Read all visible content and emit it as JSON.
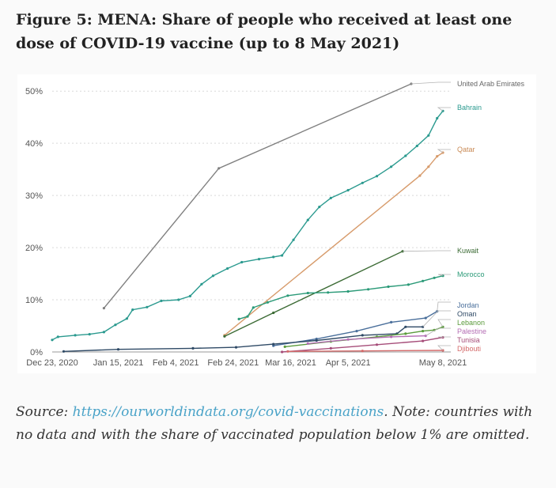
{
  "header": {
    "title": "Figure 5: MENA: Share of people who received at least one dose of COVID-19 vaccine (up to 8 May 2021)"
  },
  "footer": {
    "source_prefix": "Source: ",
    "source_link": "https://ourworldindata.org/covid-vaccinations",
    "source_note": ". Note: countries with no data and with the share of vaccinated population below 1% are omitted."
  },
  "chart_data": {
    "type": "line",
    "title": "",
    "xlabel": "",
    "ylabel": "",
    "x_ticks": [
      "Dec 23, 2020",
      "Jan 15, 2021",
      "Feb 4, 2021",
      "Feb 24, 2021",
      "Mar 16, 2021",
      "Apr 5, 2021",
      "May 8, 2021"
    ],
    "x_domain": [
      "2020-12-23",
      "2021-05-08"
    ],
    "y_ticks": [
      "0%",
      "10%",
      "20%",
      "30%",
      "40%",
      "50%"
    ],
    "ylim": [
      0,
      52
    ],
    "grid": "horizontal dotted",
    "legend": "right, labels at line ends",
    "series": [
      {
        "name": "United Arab Emirates",
        "color": "#808080",
        "points": [
          [
            "2021-01-10",
            8.4
          ],
          [
            "2021-02-19",
            35.2
          ],
          [
            "2021-04-27",
            51.4
          ]
        ]
      },
      {
        "name": "Bahrain",
        "color": "#2b9a8f",
        "points": [
          [
            "2020-12-23",
            2.3
          ],
          [
            "2020-12-25",
            2.9
          ],
          [
            "2020-12-31",
            3.2
          ],
          [
            "2021-01-05",
            3.4
          ],
          [
            "2021-01-10",
            3.8
          ],
          [
            "2021-01-14",
            5.2
          ],
          [
            "2021-01-18",
            6.4
          ],
          [
            "2021-01-20",
            8.1
          ],
          [
            "2021-01-25",
            8.6
          ],
          [
            "2021-01-30",
            9.8
          ],
          [
            "2021-02-05",
            10.0
          ],
          [
            "2021-02-09",
            10.7
          ],
          [
            "2021-02-13",
            13.0
          ],
          [
            "2021-02-17",
            14.6
          ],
          [
            "2021-02-22",
            16.0
          ],
          [
            "2021-02-27",
            17.2
          ],
          [
            "2021-03-05",
            17.8
          ],
          [
            "2021-03-10",
            18.2
          ],
          [
            "2021-03-13",
            18.5
          ],
          [
            "2021-03-17",
            21.5
          ],
          [
            "2021-03-22",
            25.3
          ],
          [
            "2021-03-26",
            27.8
          ],
          [
            "2021-03-30",
            29.5
          ],
          [
            "2021-04-05",
            31.0
          ],
          [
            "2021-04-10",
            32.4
          ],
          [
            "2021-04-15",
            33.7
          ],
          [
            "2021-04-20",
            35.5
          ],
          [
            "2021-04-25",
            37.6
          ],
          [
            "2021-04-29",
            39.5
          ],
          [
            "2021-05-03",
            41.5
          ],
          [
            "2021-05-06",
            44.8
          ],
          [
            "2021-05-08",
            46.2
          ]
        ]
      },
      {
        "name": "Qatar",
        "color": "#d79b6b",
        "points": [
          [
            "2021-02-21",
            3.2
          ],
          [
            "2021-04-30",
            33.8
          ],
          [
            "2021-05-03",
            35.5
          ],
          [
            "2021-05-06",
            37.5
          ],
          [
            "2021-05-08",
            38.2
          ]
        ]
      },
      {
        "name": "Kuwait",
        "color": "#3c6b35",
        "points": [
          [
            "2021-02-21",
            3.0
          ],
          [
            "2021-03-10",
            7.5
          ],
          [
            "2021-04-24",
            19.3
          ]
        ]
      },
      {
        "name": "Morocco",
        "color": "#2b9a78",
        "points": [
          [
            "2021-02-26",
            6.3
          ],
          [
            "2021-03-01",
            6.8
          ],
          [
            "2021-03-03",
            8.5
          ],
          [
            "2021-03-08",
            9.5
          ],
          [
            "2021-03-15",
            10.8
          ],
          [
            "2021-03-22",
            11.3
          ],
          [
            "2021-03-29",
            11.4
          ],
          [
            "2021-04-05",
            11.6
          ],
          [
            "2021-04-12",
            12.0
          ],
          [
            "2021-04-19",
            12.5
          ],
          [
            "2021-04-26",
            12.9
          ],
          [
            "2021-05-01",
            13.6
          ],
          [
            "2021-05-05",
            14.2
          ],
          [
            "2021-05-08",
            14.6
          ]
        ]
      },
      {
        "name": "Jordan",
        "color": "#4a6f9b",
        "points": [
          [
            "2021-03-10",
            1.2
          ],
          [
            "2021-03-25",
            2.5
          ],
          [
            "2021-04-08",
            4.0
          ],
          [
            "2021-04-20",
            5.7
          ],
          [
            "2021-05-02",
            6.5
          ],
          [
            "2021-05-06",
            7.8
          ]
        ]
      },
      {
        "name": "Oman",
        "color": "#2f4a66",
        "points": [
          [
            "2020-12-27",
            0.1
          ],
          [
            "2021-01-15",
            0.5
          ],
          [
            "2021-02-10",
            0.7
          ],
          [
            "2021-02-25",
            0.9
          ],
          [
            "2021-03-10",
            1.5
          ],
          [
            "2021-03-25",
            2.2
          ],
          [
            "2021-04-10",
            3.2
          ],
          [
            "2021-04-22",
            3.5
          ],
          [
            "2021-04-25",
            4.8
          ],
          [
            "2021-05-01",
            4.8
          ]
        ]
      },
      {
        "name": "Lebanon",
        "color": "#5b9b3c",
        "points": [
          [
            "2021-03-14",
            1.0
          ],
          [
            "2021-03-30",
            2.0
          ],
          [
            "2021-04-15",
            2.9
          ],
          [
            "2021-04-25",
            3.5
          ],
          [
            "2021-05-01",
            4.0
          ],
          [
            "2021-05-05",
            4.2
          ],
          [
            "2021-05-08",
            4.8
          ]
        ]
      },
      {
        "name": "Palestine",
        "color": "#b46eb4",
        "points": [
          [
            "2021-03-22",
            1.6
          ],
          [
            "2021-04-05",
            2.4
          ],
          [
            "2021-04-20",
            2.9
          ],
          [
            "2021-05-02",
            3.1
          ]
        ]
      },
      {
        "name": "Tunisia",
        "color": "#a64d79",
        "points": [
          [
            "2021-03-13",
            0.0
          ],
          [
            "2021-03-30",
            0.7
          ],
          [
            "2021-04-15",
            1.4
          ],
          [
            "2021-05-01",
            2.1
          ],
          [
            "2021-05-08",
            2.8
          ]
        ]
      },
      {
        "name": "Djibouti",
        "color": "#d46a6a",
        "points": [
          [
            "2021-03-15",
            0.1
          ],
          [
            "2021-04-10",
            0.2
          ],
          [
            "2021-05-08",
            0.3
          ]
        ]
      }
    ],
    "labels": [
      {
        "text": "United Arab Emirates",
        "color": "#666666"
      },
      {
        "text": "Bahrain",
        "color": "#2b9a8f"
      },
      {
        "text": "Qatar",
        "color": "#c98a55"
      },
      {
        "text": "Kuwait",
        "color": "#3c6b35"
      },
      {
        "text": "Morocco",
        "color": "#2b9a78"
      },
      {
        "text": "Jordan",
        "color": "#4a6f9b"
      },
      {
        "text": "Oman",
        "color": "#2f4a66"
      },
      {
        "text": "Lebanon",
        "color": "#5b9b3c"
      },
      {
        "text": "Palestine",
        "color": "#b46eb4"
      },
      {
        "text": "Tunisia",
        "color": "#a64d79"
      },
      {
        "text": "Djibouti",
        "color": "#d46a6a"
      }
    ]
  }
}
